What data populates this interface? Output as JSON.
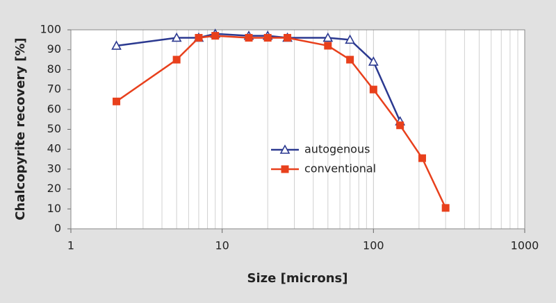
{
  "chart_data": {
    "type": "line",
    "xlabel": "Size [microns]",
    "ylabel": "Chalcopyrite recovery [%]",
    "xscale": "log",
    "xlim": [
      1,
      1000
    ],
    "xticks": [
      1,
      10,
      100,
      1000
    ],
    "ylim": [
      0,
      100
    ],
    "yticks": [
      0,
      10,
      20,
      30,
      40,
      50,
      60,
      70,
      80,
      90,
      100
    ],
    "grid": true,
    "legend_position": "center",
    "series": [
      {
        "name": "autogenous",
        "color": "#2b3990",
        "marker": "triangle",
        "x": [
          2,
          5,
          7,
          9,
          15,
          20,
          27,
          50,
          70,
          100,
          150
        ],
        "values": [
          92,
          96,
          96,
          98,
          97,
          97,
          96,
          96,
          95,
          84,
          54
        ]
      },
      {
        "name": "conventional",
        "color": "#e8401c",
        "marker": "square",
        "x": [
          2,
          5,
          7,
          9,
          15,
          20,
          27,
          50,
          70,
          100,
          150,
          210,
          300
        ],
        "values": [
          64,
          85,
          96,
          97,
          96,
          96,
          96,
          92,
          85,
          70,
          52,
          35.5,
          10.5
        ]
      }
    ]
  }
}
